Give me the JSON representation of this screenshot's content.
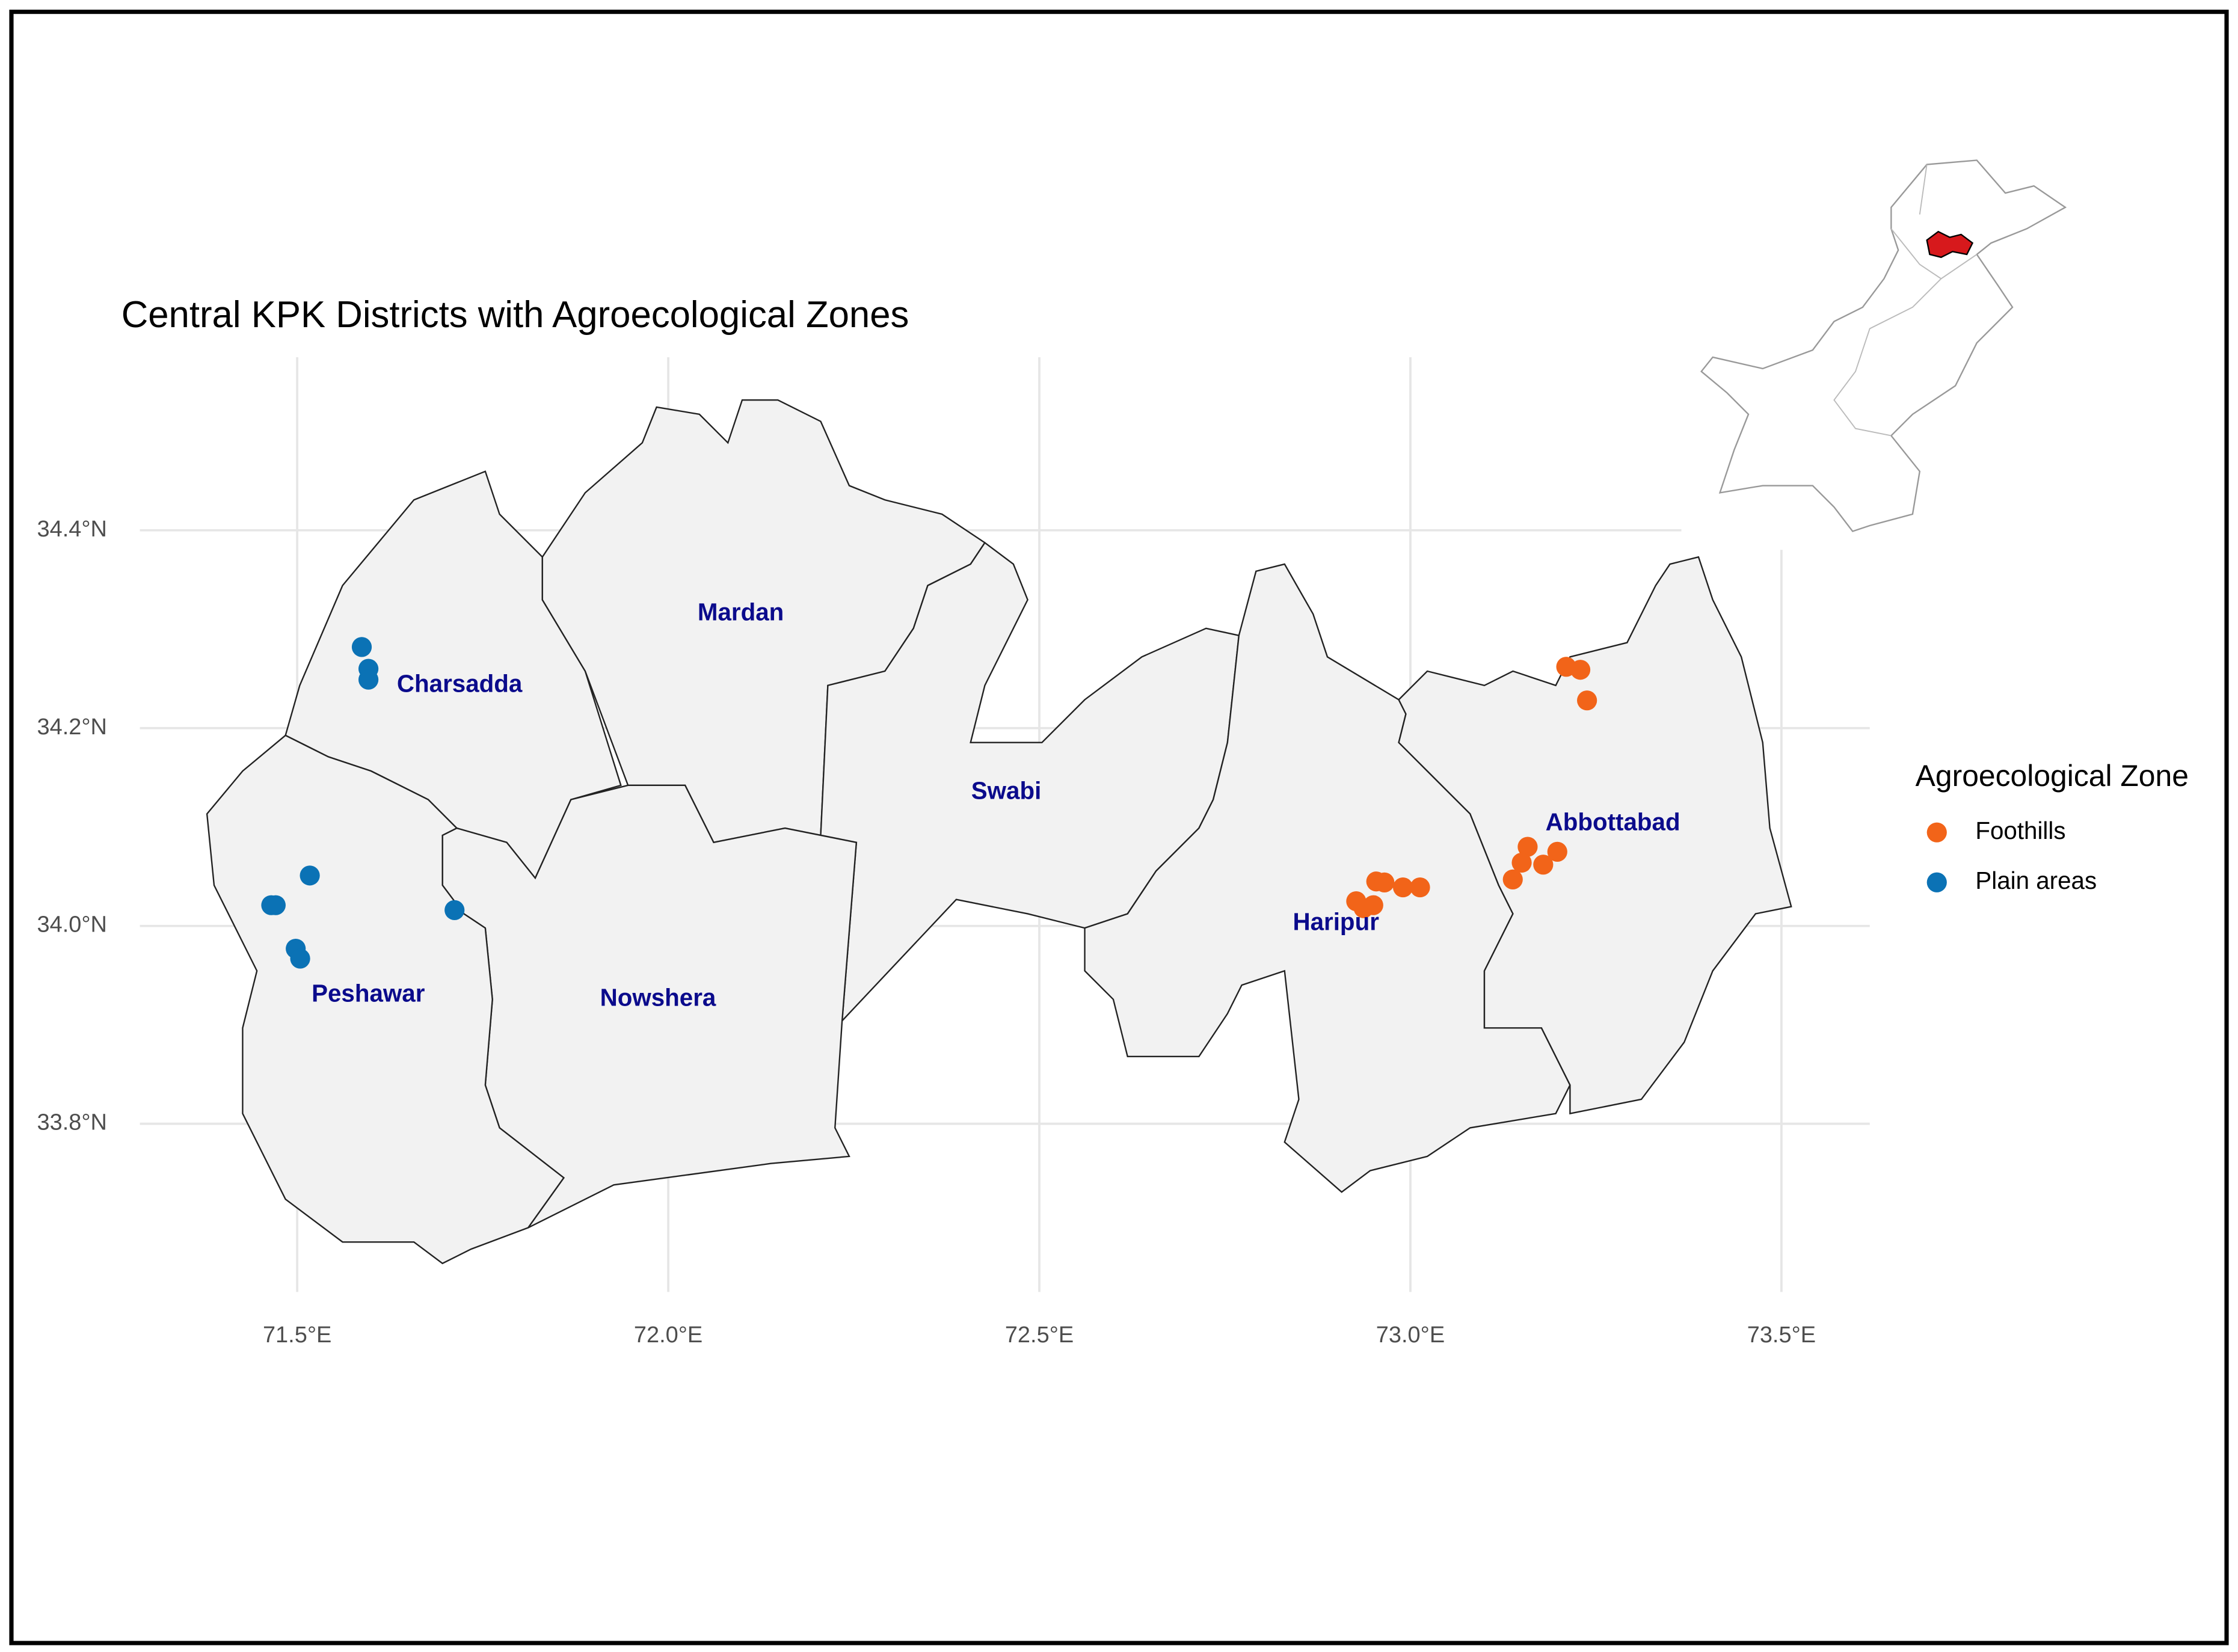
{
  "chart_data": {
    "type": "map",
    "title": "Central KPK Districts with Agroecological Zones",
    "xlim": [
      71.288,
      73.619
    ],
    "ylim": [
      33.63,
      34.575
    ],
    "xticks": [
      {
        "value": 71.5,
        "label": "71.5°E"
      },
      {
        "value": 72.0,
        "label": "72.0°E"
      },
      {
        "value": 72.5,
        "label": "72.5°E"
      },
      {
        "value": 73.0,
        "label": "73.0°E"
      },
      {
        "value": 73.5,
        "label": "73.5°E"
      }
    ],
    "yticks": [
      {
        "value": 33.8,
        "label": "33.8°N"
      },
      {
        "value": 34.0,
        "label": "34.0°N"
      },
      {
        "value": 34.2,
        "label": "34.2°N"
      },
      {
        "value": 34.4,
        "label": "34.4°N"
      }
    ],
    "grid": true,
    "districts": [
      "Charsadda",
      "Mardan",
      "Swabi",
      "Peshawar",
      "Nowshera",
      "Haripur",
      "Abbottabad"
    ],
    "legend_title": "Agroecological Zone",
    "legend": "right",
    "series": [
      {
        "name": "Foothills",
        "color": "#f26419",
        "x": [
          73.21,
          73.229,
          73.238,
          73.158,
          73.198,
          73.15,
          73.179,
          73.138,
          72.954,
          72.965,
          72.99,
          73.013,
          72.927,
          72.95,
          72.937
        ],
        "values": [
          34.262,
          34.259,
          34.228,
          34.08,
          34.075,
          34.064,
          34.062,
          34.047,
          34.045,
          34.044,
          34.039,
          34.039,
          34.025,
          34.021,
          34.018
        ]
      },
      {
        "name": "Plain areas",
        "color": "#0b72b5",
        "x": [
          71.587,
          71.596,
          71.596,
          71.517,
          71.465,
          71.471,
          71.498,
          71.504,
          71.712
        ],
        "values": [
          34.282,
          34.26,
          34.249,
          34.051,
          34.021,
          34.021,
          33.977,
          33.967,
          34.016
        ]
      }
    ]
  }
}
